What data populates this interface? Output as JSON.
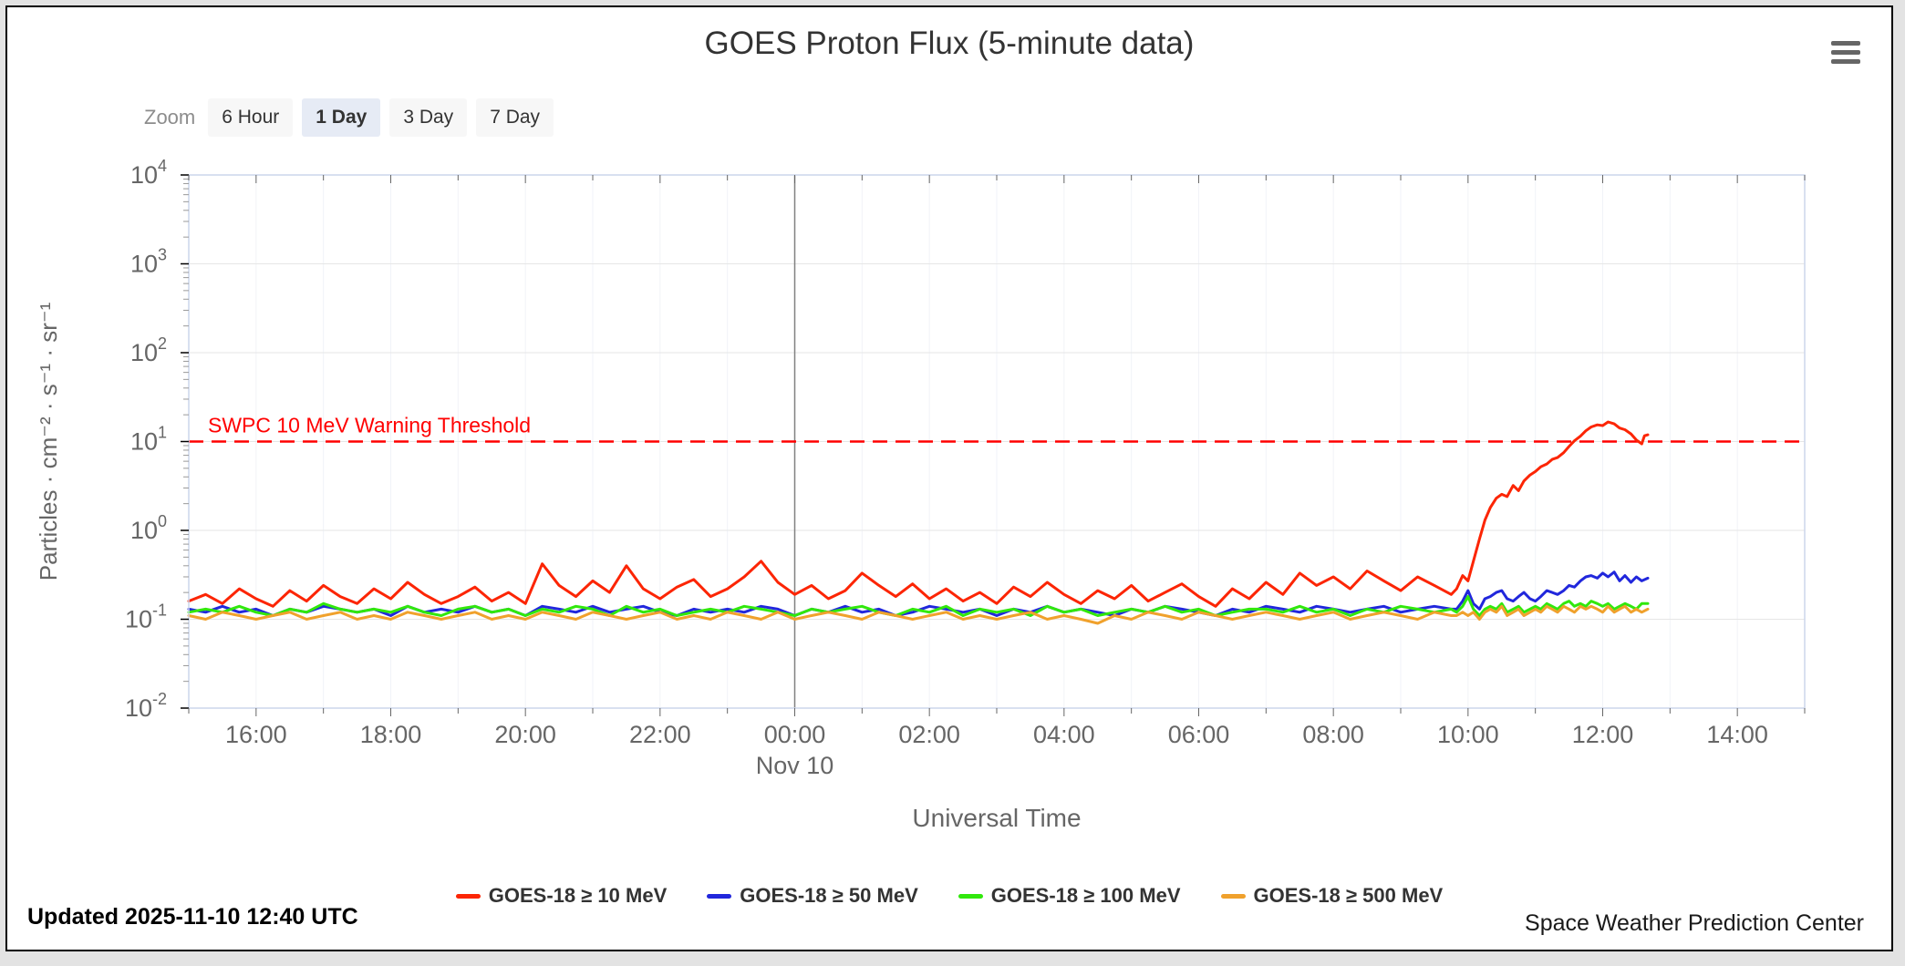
{
  "page": {
    "title": "GOES Proton Flux (5-minute data)",
    "updated": "Updated 2025-11-10 12:40 UTC",
    "credit": "Space Weather Prediction Center"
  },
  "zoom_toolbar": {
    "label": "Zoom",
    "buttons": [
      {
        "label": "6 Hour",
        "selected": false
      },
      {
        "label": "1 Day",
        "selected": true
      },
      {
        "label": "3 Day",
        "selected": false
      },
      {
        "label": "7 Day",
        "selected": false
      }
    ]
  },
  "chart_data": {
    "type": "line",
    "title": "GOES Proton Flux (5-minute data)",
    "xlabel": "Universal Time",
    "ylabel": "Particles · cm⁻² · s⁻¹ · sr⁻¹",
    "y_scale": "log10",
    "ylim": [
      0.01,
      10000
    ],
    "y_tick_exponents": [
      4,
      3,
      2,
      1,
      0,
      -1,
      -2
    ],
    "x_axis_note": "hours since 15:00 UTC Nov 9; axis spans 24 h (15:00 Nov 9 – 15:00 Nov 10)",
    "x_range_hours": [
      0,
      24
    ],
    "x_ticks": [
      {
        "t": 1,
        "label": "16:00"
      },
      {
        "t": 3,
        "label": "18:00"
      },
      {
        "t": 5,
        "label": "20:00"
      },
      {
        "t": 7,
        "label": "22:00"
      },
      {
        "t": 9,
        "label": "00:00",
        "label2": "Nov 10"
      },
      {
        "t": 11,
        "label": "02:00"
      },
      {
        "t": 13,
        "label": "04:00"
      },
      {
        "t": 15,
        "label": "06:00"
      },
      {
        "t": 17,
        "label": "08:00"
      },
      {
        "t": 19,
        "label": "10:00"
      },
      {
        "t": 21,
        "label": "12:00"
      },
      {
        "t": 23,
        "label": "14:00"
      }
    ],
    "day_boundary_t": 9,
    "grid": {
      "h_color": "#e6e6e6",
      "v_color": "#f1f3f8",
      "border_color": "#ccd6eb",
      "day_line_color": "#808080"
    },
    "threshold": {
      "value": 10,
      "label": "SWPC 10 MeV Warning Threshold",
      "color": "#ff0000"
    },
    "series": [
      {
        "name": "GOES-18 ≥ 10 MeV",
        "color": "#fc2504",
        "baseline": {
          "t0": 0,
          "dt": 0.25,
          "v": [
            0.16,
            0.19,
            0.15,
            0.22,
            0.17,
            0.14,
            0.21,
            0.16,
            0.24,
            0.18,
            0.15,
            0.22,
            0.17,
            0.26,
            0.19,
            0.15,
            0.18,
            0.23,
            0.16,
            0.2,
            0.15,
            0.42,
            0.24,
            0.18,
            0.27,
            0.2,
            0.4,
            0.22,
            0.17,
            0.23,
            0.28,
            0.18,
            0.22,
            0.3,
            0.45,
            0.26,
            0.19,
            0.24,
            0.17,
            0.21,
            0.33,
            0.24,
            0.18,
            0.25,
            0.17,
            0.22,
            0.16,
            0.2,
            0.15,
            0.23,
            0.18,
            0.26,
            0.19,
            0.15,
            0.21,
            0.17,
            0.24,
            0.16,
            0.2,
            0.25,
            0.18,
            0.14,
            0.22,
            0.17,
            0.26,
            0.19,
            0.33,
            0.24,
            0.3,
            0.22,
            0.35,
            0.27,
            0.21,
            0.3,
            0.24,
            0.19
          ]
        },
        "event": [
          [
            18.83,
            0.22
          ],
          [
            18.92,
            0.31
          ],
          [
            19.0,
            0.27
          ],
          [
            19.08,
            0.45
          ],
          [
            19.17,
            0.8
          ],
          [
            19.25,
            1.3
          ],
          [
            19.33,
            1.8
          ],
          [
            19.42,
            2.3
          ],
          [
            19.5,
            2.55
          ],
          [
            19.58,
            2.4
          ],
          [
            19.67,
            3.2
          ],
          [
            19.75,
            2.8
          ],
          [
            19.83,
            3.6
          ],
          [
            19.92,
            4.2
          ],
          [
            20.0,
            4.6
          ],
          [
            20.08,
            5.2
          ],
          [
            20.17,
            5.6
          ],
          [
            20.25,
            6.3
          ],
          [
            20.33,
            6.6
          ],
          [
            20.42,
            7.5
          ],
          [
            20.5,
            8.8
          ],
          [
            20.58,
            10.2
          ],
          [
            20.67,
            11.5
          ],
          [
            20.75,
            13.2
          ],
          [
            20.83,
            14.6
          ],
          [
            20.92,
            15.4
          ],
          [
            21.0,
            15.1
          ],
          [
            21.08,
            16.6
          ],
          [
            21.17,
            15.8
          ],
          [
            21.25,
            14.2
          ],
          [
            21.33,
            13.6
          ],
          [
            21.42,
            12.2
          ],
          [
            21.5,
            10.4
          ],
          [
            21.58,
            9.4
          ],
          [
            21.62,
            11.6
          ],
          [
            21.67,
            11.9
          ]
        ]
      },
      {
        "name": "GOES-18 ≥ 50 MeV",
        "color": "#2127dc",
        "baseline": {
          "t0": 0,
          "dt": 0.25,
          "v": [
            0.13,
            0.12,
            0.14,
            0.12,
            0.13,
            0.11,
            0.13,
            0.12,
            0.14,
            0.13,
            0.12,
            0.13,
            0.11,
            0.14,
            0.12,
            0.13,
            0.12,
            0.14,
            0.12,
            0.13,
            0.11,
            0.14,
            0.13,
            0.12,
            0.14,
            0.12,
            0.13,
            0.14,
            0.12,
            0.11,
            0.13,
            0.12,
            0.13,
            0.12,
            0.14,
            0.13,
            0.11,
            0.13,
            0.12,
            0.14,
            0.12,
            0.13,
            0.11,
            0.12,
            0.14,
            0.13,
            0.12,
            0.13,
            0.11,
            0.13,
            0.12,
            0.14,
            0.12,
            0.13,
            0.12,
            0.11,
            0.13,
            0.12,
            0.14,
            0.13,
            0.12,
            0.11,
            0.13,
            0.12,
            0.14,
            0.13,
            0.12,
            0.14,
            0.13,
            0.12,
            0.13,
            0.14,
            0.12,
            0.13,
            0.14,
            0.13
          ]
        },
        "event": [
          [
            18.83,
            0.13
          ],
          [
            18.92,
            0.16
          ],
          [
            19.0,
            0.21
          ],
          [
            19.08,
            0.15
          ],
          [
            19.17,
            0.13
          ],
          [
            19.25,
            0.17
          ],
          [
            19.33,
            0.18
          ],
          [
            19.42,
            0.2
          ],
          [
            19.5,
            0.21
          ],
          [
            19.58,
            0.17
          ],
          [
            19.67,
            0.16
          ],
          [
            19.75,
            0.18
          ],
          [
            19.83,
            0.2
          ],
          [
            19.92,
            0.17
          ],
          [
            20.0,
            0.16
          ],
          [
            20.08,
            0.18
          ],
          [
            20.17,
            0.21
          ],
          [
            20.25,
            0.2
          ],
          [
            20.33,
            0.19
          ],
          [
            20.42,
            0.21
          ],
          [
            20.5,
            0.24
          ],
          [
            20.58,
            0.23
          ],
          [
            20.67,
            0.27
          ],
          [
            20.75,
            0.3
          ],
          [
            20.83,
            0.31
          ],
          [
            20.92,
            0.29
          ],
          [
            21.0,
            0.33
          ],
          [
            21.08,
            0.3
          ],
          [
            21.17,
            0.34
          ],
          [
            21.25,
            0.27
          ],
          [
            21.33,
            0.31
          ],
          [
            21.42,
            0.26
          ],
          [
            21.5,
            0.3
          ],
          [
            21.58,
            0.27
          ],
          [
            21.67,
            0.29
          ]
        ]
      },
      {
        "name": "GOES-18 ≥ 100 MeV",
        "color": "#31e80c",
        "baseline": {
          "t0": 0,
          "dt": 0.25,
          "v": [
            0.12,
            0.13,
            0.12,
            0.14,
            0.12,
            0.11,
            0.13,
            0.12,
            0.15,
            0.13,
            0.12,
            0.13,
            0.12,
            0.14,
            0.12,
            0.11,
            0.13,
            0.14,
            0.12,
            0.13,
            0.11,
            0.13,
            0.12,
            0.14,
            0.13,
            0.11,
            0.14,
            0.12,
            0.13,
            0.11,
            0.12,
            0.13,
            0.12,
            0.14,
            0.13,
            0.12,
            0.11,
            0.13,
            0.12,
            0.13,
            0.14,
            0.12,
            0.11,
            0.13,
            0.12,
            0.14,
            0.11,
            0.13,
            0.12,
            0.13,
            0.11,
            0.14,
            0.12,
            0.13,
            0.11,
            0.12,
            0.13,
            0.12,
            0.14,
            0.12,
            0.13,
            0.11,
            0.12,
            0.13,
            0.13,
            0.12,
            0.14,
            0.12,
            0.13,
            0.11,
            0.13,
            0.12,
            0.14,
            0.13,
            0.12,
            0.13
          ]
        },
        "event": [
          [
            18.83,
            0.12
          ],
          [
            18.92,
            0.14
          ],
          [
            19.0,
            0.18
          ],
          [
            19.08,
            0.13
          ],
          [
            19.17,
            0.11
          ],
          [
            19.25,
            0.13
          ],
          [
            19.33,
            0.14
          ],
          [
            19.42,
            0.13
          ],
          [
            19.5,
            0.15
          ],
          [
            19.58,
            0.12
          ],
          [
            19.67,
            0.13
          ],
          [
            19.75,
            0.14
          ],
          [
            19.83,
            0.12
          ],
          [
            19.92,
            0.13
          ],
          [
            20.0,
            0.14
          ],
          [
            20.08,
            0.13
          ],
          [
            20.17,
            0.15
          ],
          [
            20.25,
            0.14
          ],
          [
            20.33,
            0.13
          ],
          [
            20.42,
            0.15
          ],
          [
            20.5,
            0.16
          ],
          [
            20.58,
            0.14
          ],
          [
            20.67,
            0.15
          ],
          [
            20.75,
            0.14
          ],
          [
            20.83,
            0.16
          ],
          [
            20.92,
            0.15
          ],
          [
            21.0,
            0.14
          ],
          [
            21.08,
            0.15
          ],
          [
            21.17,
            0.13
          ],
          [
            21.25,
            0.14
          ],
          [
            21.33,
            0.15
          ],
          [
            21.42,
            0.14
          ],
          [
            21.5,
            0.13
          ],
          [
            21.58,
            0.15
          ],
          [
            21.67,
            0.15
          ]
        ]
      },
      {
        "name": "GOES-18 ≥ 500 MeV",
        "color": "#f0a12c",
        "baseline": {
          "t0": 0,
          "dt": 0.25,
          "v": [
            0.11,
            0.1,
            0.12,
            0.11,
            0.1,
            0.11,
            0.12,
            0.1,
            0.11,
            0.12,
            0.1,
            0.11,
            0.1,
            0.12,
            0.11,
            0.1,
            0.11,
            0.12,
            0.1,
            0.11,
            0.1,
            0.12,
            0.11,
            0.1,
            0.12,
            0.11,
            0.1,
            0.11,
            0.12,
            0.1,
            0.11,
            0.1,
            0.12,
            0.11,
            0.1,
            0.12,
            0.1,
            0.11,
            0.12,
            0.11,
            0.1,
            0.12,
            0.11,
            0.1,
            0.11,
            0.12,
            0.1,
            0.11,
            0.1,
            0.11,
            0.12,
            0.1,
            0.11,
            0.1,
            0.09,
            0.11,
            0.1,
            0.12,
            0.11,
            0.1,
            0.12,
            0.11,
            0.1,
            0.11,
            0.12,
            0.11,
            0.1,
            0.11,
            0.12,
            0.1,
            0.11,
            0.12,
            0.11,
            0.1,
            0.12,
            0.11
          ]
        },
        "event": [
          [
            18.83,
            0.11
          ],
          [
            18.92,
            0.12
          ],
          [
            19.0,
            0.11
          ],
          [
            19.08,
            0.12
          ],
          [
            19.17,
            0.1
          ],
          [
            19.25,
            0.12
          ],
          [
            19.33,
            0.13
          ],
          [
            19.42,
            0.12
          ],
          [
            19.5,
            0.14
          ],
          [
            19.58,
            0.11
          ],
          [
            19.67,
            0.12
          ],
          [
            19.75,
            0.13
          ],
          [
            19.83,
            0.11
          ],
          [
            19.92,
            0.12
          ],
          [
            20.0,
            0.13
          ],
          [
            20.08,
            0.12
          ],
          [
            20.17,
            0.14
          ],
          [
            20.25,
            0.13
          ],
          [
            20.33,
            0.12
          ],
          [
            20.42,
            0.14
          ],
          [
            20.5,
            0.13
          ],
          [
            20.58,
            0.12
          ],
          [
            20.67,
            0.14
          ],
          [
            20.75,
            0.13
          ],
          [
            20.83,
            0.14
          ],
          [
            20.92,
            0.13
          ],
          [
            21.0,
            0.12
          ],
          [
            21.08,
            0.14
          ],
          [
            21.17,
            0.12
          ],
          [
            21.25,
            0.13
          ],
          [
            21.33,
            0.14
          ],
          [
            21.42,
            0.12
          ],
          [
            21.5,
            0.13
          ],
          [
            21.58,
            0.12
          ],
          [
            21.67,
            0.13
          ]
        ]
      }
    ]
  }
}
